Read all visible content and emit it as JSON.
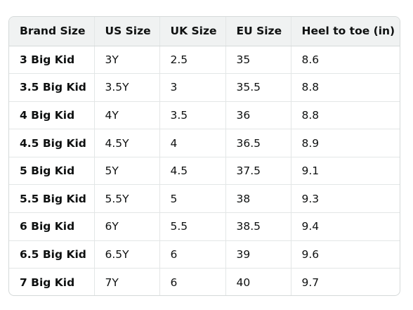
{
  "table": {
    "headers": [
      "Brand Size",
      "US Size",
      "UK Size",
      "EU Size",
      "Heel to toe (in)"
    ],
    "rows": [
      [
        "3 Big Kid",
        "3Y",
        "2.5",
        "35",
        "8.6"
      ],
      [
        "3.5 Big Kid",
        "3.5Y",
        "3",
        "35.5",
        "8.8"
      ],
      [
        "4 Big Kid",
        "4Y",
        "3.5",
        "36",
        "8.8"
      ],
      [
        "4.5 Big Kid",
        "4.5Y",
        "4",
        "36.5",
        "8.9"
      ],
      [
        "5 Big Kid",
        "5Y",
        "4.5",
        "37.5",
        "9.1"
      ],
      [
        "5.5 Big Kid",
        "5.5Y",
        "5",
        "38",
        "9.3"
      ],
      [
        "6 Big Kid",
        "6Y",
        "5.5",
        "38.5",
        "9.4"
      ],
      [
        "6.5 Big Kid",
        "6.5Y",
        "6",
        "39",
        "9.6"
      ],
      [
        "7 Big Kid",
        "7Y",
        "6",
        "40",
        "9.7"
      ]
    ]
  }
}
